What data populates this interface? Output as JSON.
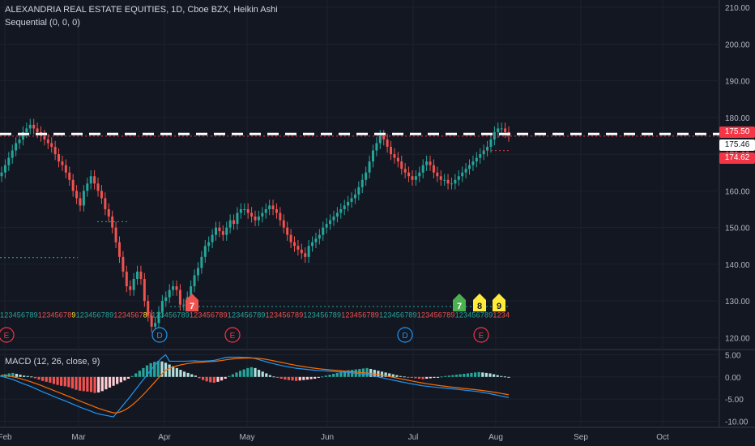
{
  "header": {
    "title": "ALEXANDRIA REAL ESTATE EQUITIES, 1D, Cboe BZX, Heikin Ashi",
    "indicator": "Sequential (0, 0, 0)"
  },
  "macd": {
    "label": "MACD (12, 26, close, 9)"
  },
  "price_badges": [
    {
      "label": "175.50",
      "bg": "#f23645",
      "fg": "#ffffff"
    },
    {
      "label": "175.46",
      "bg": "#ffffff",
      "fg": "#131722"
    },
    {
      "label": "174.62",
      "bg": "#f23645",
      "fg": "#ffffff"
    }
  ],
  "chart_data": [
    {
      "type": "candlestick",
      "title": "ALEXANDRIA REAL ESTATE EQUITIES, 1D, Cboe BZX, Heikin Ashi",
      "x_ticks": [
        "Feb",
        "Mar",
        "Apr",
        "May",
        "Jun",
        "Jul",
        "Aug",
        "Sep",
        "Oct"
      ],
      "y_ticks": [
        "210.00",
        "200.00",
        "190.00",
        "180.00",
        "170.00",
        "160.00",
        "150.00",
        "140.00",
        "130.00",
        "120.00"
      ],
      "ylim": [
        117,
        212
      ],
      "grid": true,
      "up_color": "#26a69a",
      "down_color": "#ef5350",
      "heikin_ashi_closes": [
        165,
        167,
        169,
        171,
        173,
        174,
        176,
        177,
        178,
        177,
        176,
        175,
        174,
        173,
        172,
        170,
        168,
        167,
        165,
        163,
        160,
        158,
        156,
        160,
        162,
        164,
        162,
        160,
        158,
        155,
        153,
        150,
        146,
        142,
        138,
        134,
        133,
        136,
        138,
        136,
        130,
        126,
        123,
        124,
        127,
        130,
        131,
        133,
        134,
        133,
        129,
        129,
        131,
        134,
        137,
        139,
        142,
        145,
        146,
        148,
        150,
        149,
        148,
        150,
        152,
        151,
        154,
        155,
        155,
        154,
        153,
        152,
        153,
        154,
        155,
        156,
        155,
        154,
        152,
        150,
        148,
        146,
        145,
        144,
        143,
        142,
        145,
        146,
        147,
        148,
        150,
        151,
        152,
        153,
        154,
        155,
        156,
        157,
        158,
        159,
        161,
        163,
        165,
        168,
        171,
        173,
        175,
        174,
        172,
        170,
        169,
        168,
        166,
        165,
        164,
        163,
        164,
        165,
        167,
        168,
        167,
        165,
        164,
        163,
        163,
        162,
        162,
        163,
        164,
        165,
        166,
        167,
        168,
        169,
        170,
        171,
        172,
        174,
        176,
        177,
        177,
        176,
        175
      ],
      "series": [
        {
          "name": "Sequential setup counts",
          "values": [
            1,
            2,
            3,
            4,
            5,
            6,
            7,
            8,
            9,
            1,
            2,
            3,
            4,
            5,
            6,
            7,
            8,
            9
          ]
        }
      ],
      "labels_on_chart": [
        "7",
        "8",
        "9",
        "E",
        "D",
        "E",
        "D",
        "E"
      ],
      "price_lines": [
        175.5,
        175.46,
        174.62
      ]
    },
    {
      "type": "line",
      "title": "MACD (12, 26, close, 9)",
      "y_ticks": [
        "5.00",
        "0.00",
        "-5.00",
        "-10.00"
      ],
      "ylim": [
        -11,
        6
      ],
      "series": [
        {
          "name": "MACD",
          "color": "#2196f3"
        },
        {
          "name": "Signal",
          "color": "#ff6d00"
        }
      ],
      "histogram": [
        0.4,
        0.6,
        0.8,
        0.9,
        0.7,
        0.5,
        0.3,
        0.2,
        0.1,
        -0.3,
        -0.6,
        -0.9,
        -1.1,
        -1.3,
        -1.6,
        -1.8,
        -2.0,
        -2.1,
        -2.3,
        -2.6,
        -2.9,
        -3.1,
        -3.2,
        -3.3,
        -3.4,
        -3.6,
        -3.5,
        -3.2,
        -2.8,
        -2.4,
        -2.0,
        -1.6,
        -1.2,
        -0.8,
        -0.4,
        0.2,
        0.8,
        1.4,
        2.0,
        2.6,
        3.1,
        3.4,
        3.6,
        3.5,
        3.2,
        2.8,
        2.4,
        2.0,
        1.6,
        1.2,
        0.9,
        0.6,
        0.3,
        -0.3,
        -0.7,
        -1.0,
        -1.2,
        -1.3,
        -1.1,
        -0.8,
        -0.4,
        0.2,
        0.6,
        1.0,
        1.4,
        1.7,
        2.0,
        2.2,
        2.0,
        1.6,
        1.2,
        0.8,
        0.4,
        0.1,
        -0.2,
        -0.4,
        -0.6,
        -0.7,
        -0.8,
        -0.9,
        -0.8,
        -0.7,
        -0.6,
        -0.5,
        -0.4,
        -0.2,
        0.1,
        0.3,
        0.5,
        0.7,
        0.9,
        1.1,
        1.3,
        1.5,
        1.6,
        1.7,
        1.8,
        1.9,
        2.0,
        1.8,
        1.6,
        1.4,
        1.2,
        1.0,
        0.8,
        0.6,
        0.4,
        0.2,
        0.1,
        -0.1,
        -0.2,
        -0.3,
        -0.4,
        -0.5,
        -0.4,
        -0.3,
        -0.2,
        -0.1,
        0.1,
        0.2,
        0.3,
        0.4,
        0.5,
        0.6,
        0.7,
        0.8,
        0.9,
        1.0,
        1.1,
        1.0,
        0.9,
        0.8,
        0.6,
        0.4,
        0.2,
        0.1,
        0.0
      ]
    }
  ]
}
